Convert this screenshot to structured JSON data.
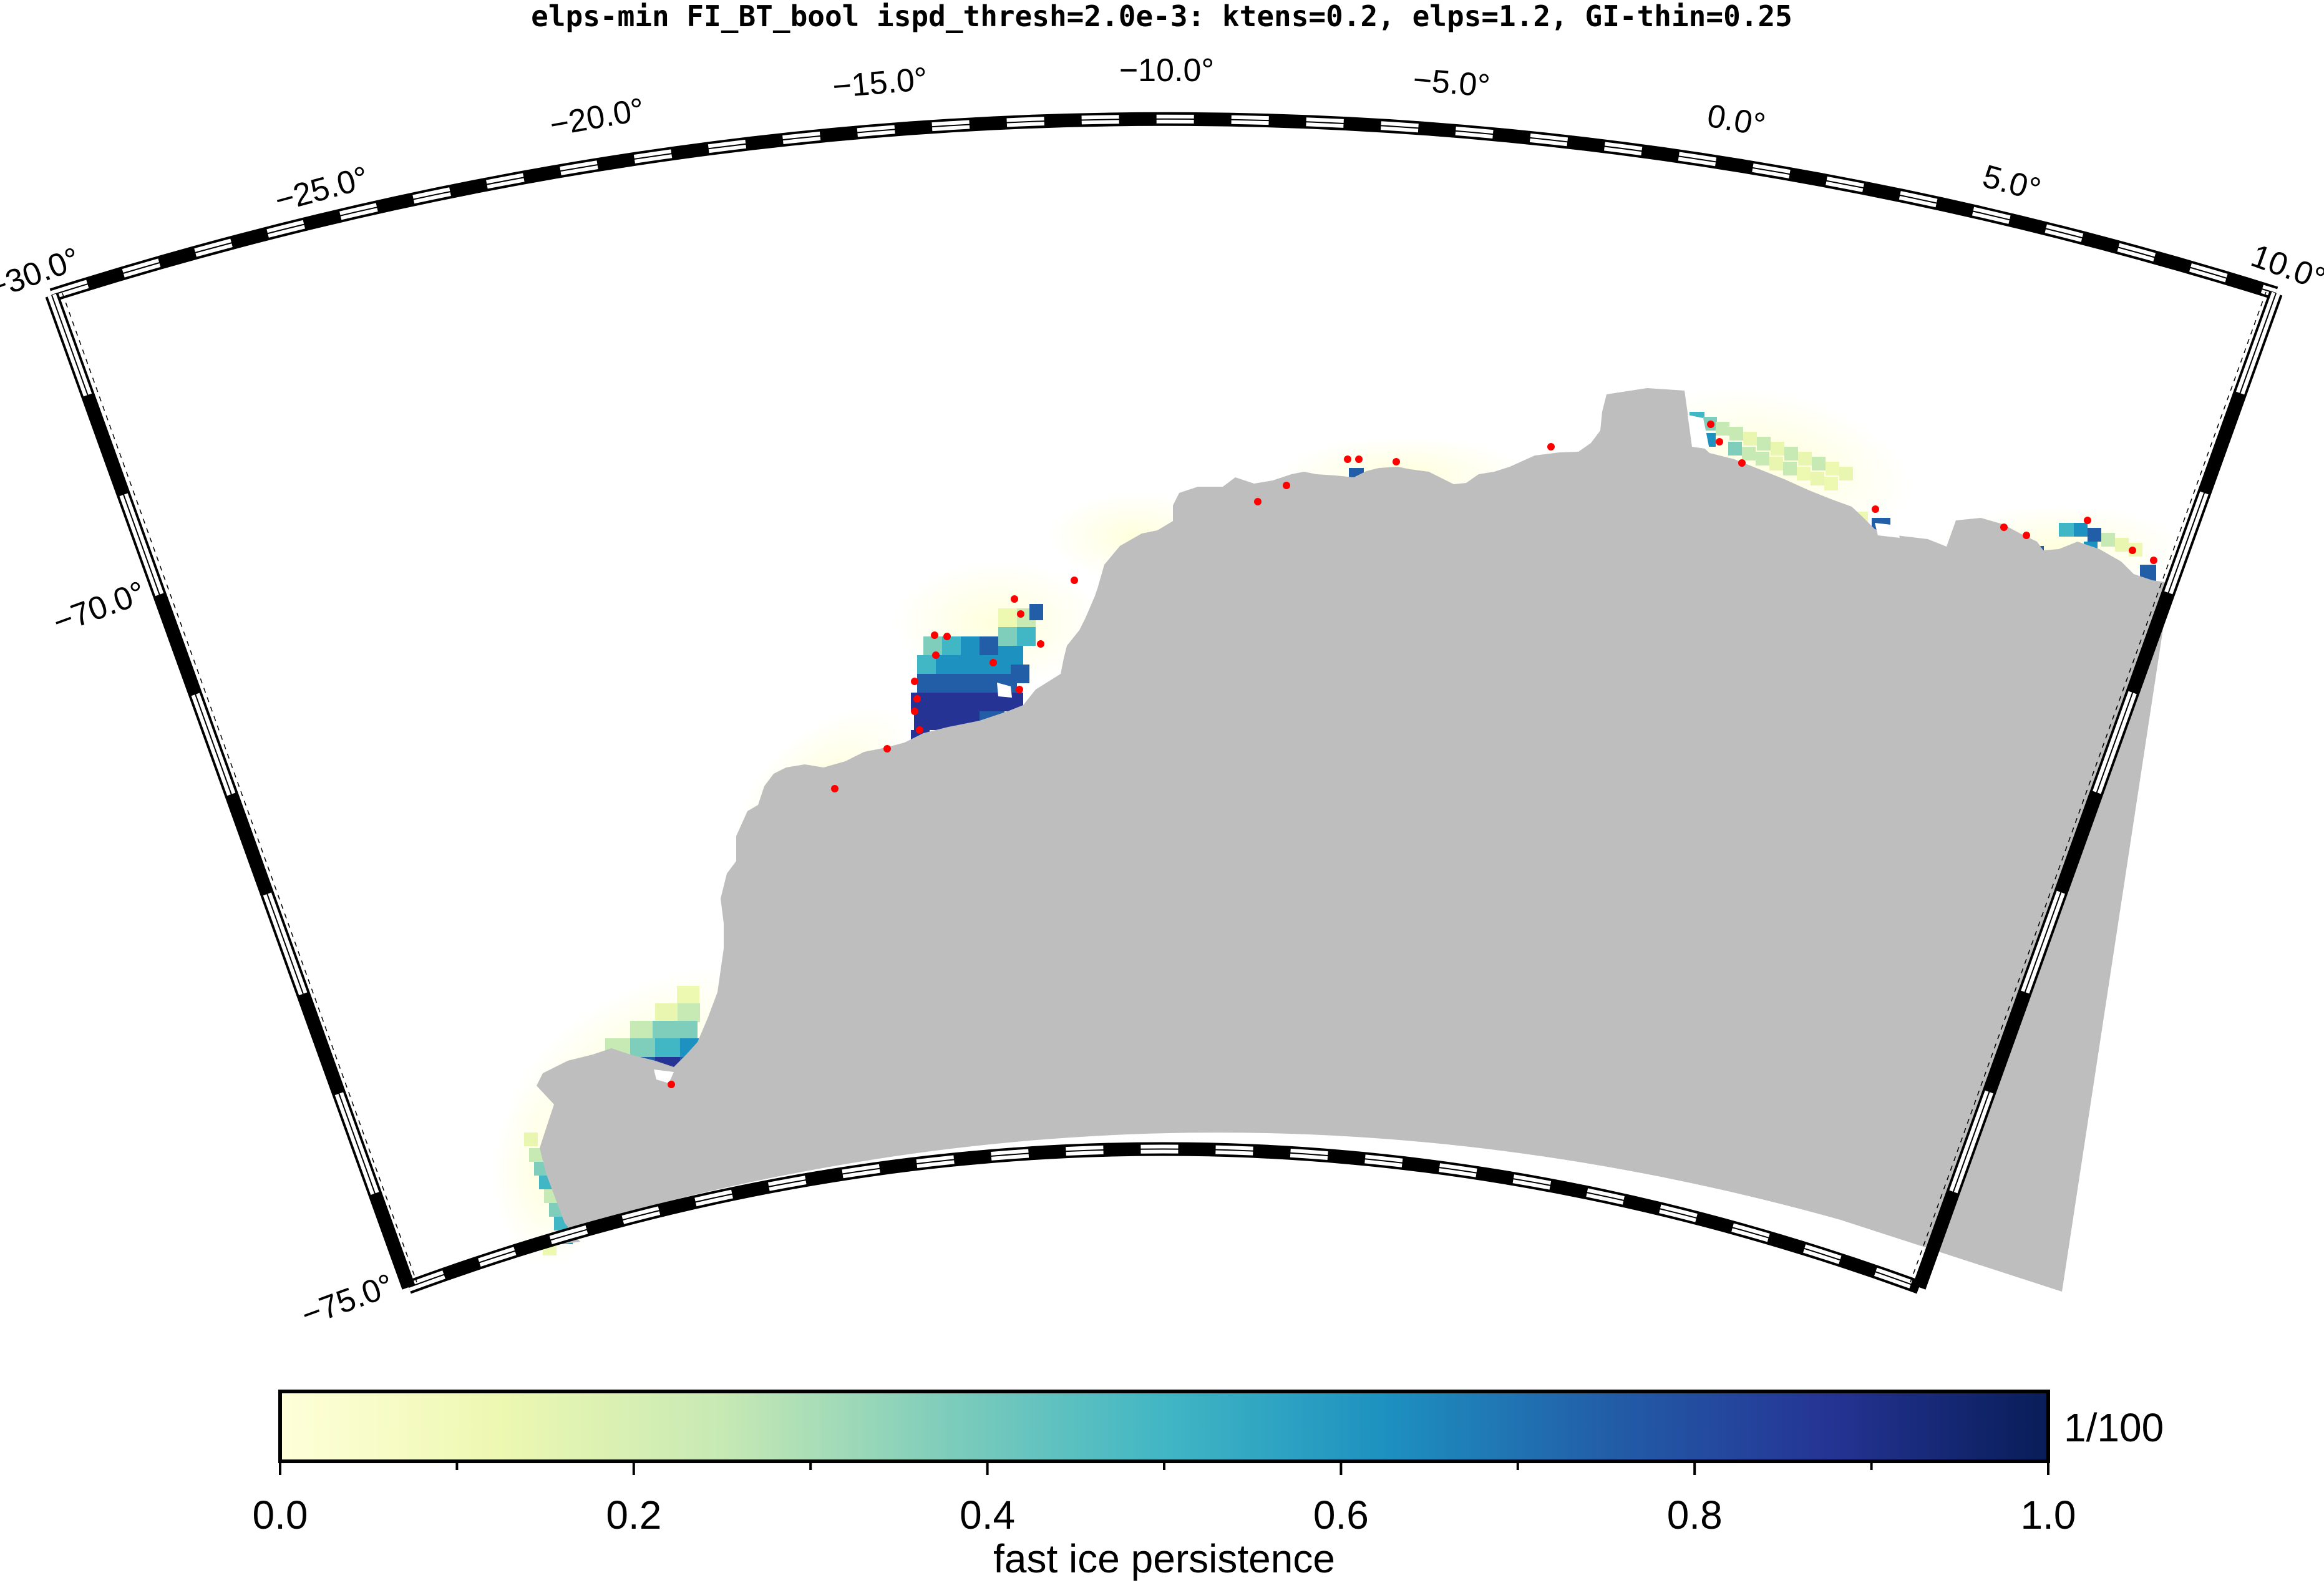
{
  "title": "elps-min FI_BT_bool ispd_thresh=2.0e-3: ktens=0.2, elps=1.2, GI-thin=0.25",
  "map": {
    "longitude_labels": [
      "−30.0°",
      "−25.0°",
      "−20.0°",
      "−15.0°",
      "−10.0°",
      "−5.0°",
      "0.0°",
      "5.0°",
      "10.0°"
    ],
    "latitude_labels": [
      "−70.0°",
      "−75.0°"
    ],
    "land_color": "#bebebe",
    "marker_color": "#ff0000",
    "frame_color": "#000000"
  },
  "colorbar": {
    "tick_labels": [
      "0.0",
      "0.2",
      "0.4",
      "0.6",
      "0.8",
      "1.0"
    ],
    "range": [
      0.0,
      1.0
    ],
    "unit_label": "1/100",
    "label": "fast ice persistence",
    "colormap_stops": [
      "#ffffd9",
      "#edf8b1",
      "#c7e9b4",
      "#7fcdbb",
      "#41b6c4",
      "#1d91c0",
      "#225ea8",
      "#253494",
      "#081d58"
    ]
  }
}
